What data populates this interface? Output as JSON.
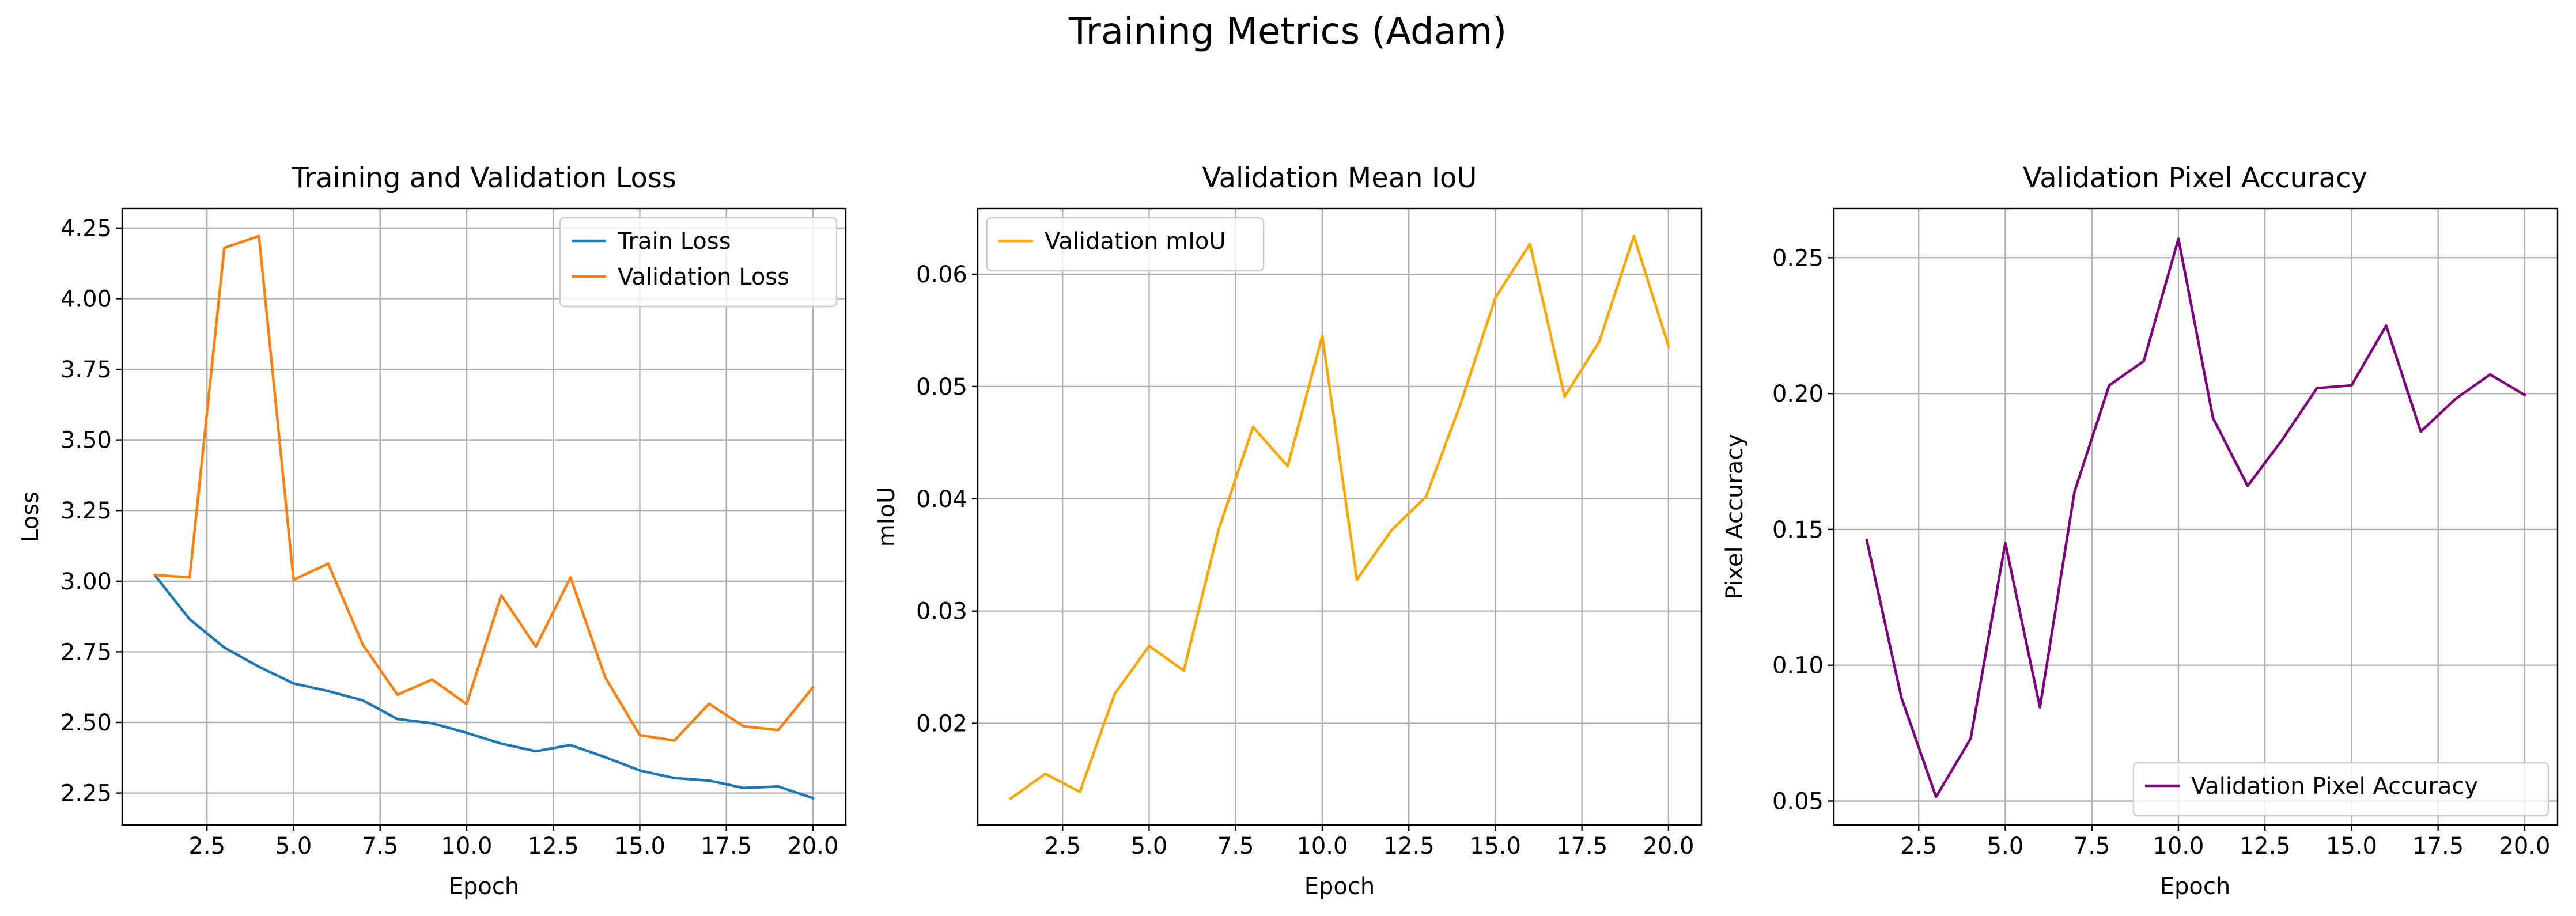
{
  "suptitle": "Training Metrics (Adam)",
  "chart_data": [
    {
      "type": "line",
      "title": "Training and Validation Loss",
      "xlabel": "Epoch",
      "ylabel": "Loss",
      "xlim": [
        0.05,
        20.95
      ],
      "ylim": [
        2.137,
        4.319
      ],
      "xticks": [
        2.5,
        5.0,
        7.5,
        10.0,
        12.5,
        15.0,
        17.5,
        20.0
      ],
      "xtick_labels": [
        "2.5",
        "5.0",
        "7.5",
        "10.0",
        "12.5",
        "15.0",
        "17.5",
        "20.0"
      ],
      "yticks": [
        2.25,
        2.5,
        2.75,
        3.0,
        3.25,
        3.5,
        3.75,
        4.0,
        4.25
      ],
      "ytick_labels": [
        "2.25",
        "2.50",
        "2.75",
        "3.00",
        "3.25",
        "3.50",
        "3.75",
        "4.00",
        "4.25"
      ],
      "grid": true,
      "legend_position": "upper right",
      "x": [
        1,
        2,
        3,
        4,
        5,
        6,
        7,
        8,
        9,
        10,
        11,
        12,
        13,
        14,
        15,
        16,
        17,
        18,
        19,
        20
      ],
      "series": [
        {
          "name": "Train Loss",
          "color": "#1f77b4",
          "values": [
            3.02,
            2.865,
            2.765,
            2.697,
            2.638,
            2.611,
            2.578,
            2.512,
            2.497,
            2.463,
            2.425,
            2.398,
            2.42,
            2.377,
            2.33,
            2.303,
            2.294,
            2.268,
            2.273,
            2.232
          ]
        },
        {
          "name": "Validation Loss",
          "color": "#ff7f0e",
          "values": [
            3.022,
            3.013,
            4.18,
            4.222,
            3.005,
            3.062,
            2.775,
            2.598,
            2.652,
            2.565,
            2.95,
            2.768,
            3.013,
            2.66,
            2.455,
            2.436,
            2.566,
            2.486,
            2.473,
            2.624
          ]
        }
      ]
    },
    {
      "type": "line",
      "title": "Validation Mean IoU",
      "xlabel": "Epoch",
      "ylabel": "mIoU",
      "xlim": [
        0.05,
        20.95
      ],
      "ylim": [
        0.01095,
        0.06585
      ],
      "xticks": [
        2.5,
        5.0,
        7.5,
        10.0,
        12.5,
        15.0,
        17.5,
        20.0
      ],
      "xtick_labels": [
        "2.5",
        "5.0",
        "7.5",
        "10.0",
        "12.5",
        "15.0",
        "17.5",
        "20.0"
      ],
      "yticks": [
        0.02,
        0.03,
        0.04,
        0.05,
        0.06
      ],
      "ytick_labels": [
        "0.02",
        "0.03",
        "0.04",
        "0.05",
        "0.06"
      ],
      "grid": true,
      "legend_position": "upper left",
      "x": [
        1,
        2,
        3,
        4,
        5,
        6,
        7,
        8,
        9,
        10,
        11,
        12,
        13,
        14,
        15,
        16,
        17,
        18,
        19,
        20
      ],
      "series": [
        {
          "name": "Validation mIoU",
          "color": "#ffa500",
          "values": [
            0.0133,
            0.0155,
            0.0139,
            0.0226,
            0.0269,
            0.0247,
            0.0372,
            0.0464,
            0.0429,
            0.0545,
            0.0328,
            0.0372,
            0.0402,
            0.0485,
            0.0579,
            0.0627,
            0.0491,
            0.054,
            0.0634,
            0.0536
          ]
        }
      ]
    },
    {
      "type": "line",
      "title": "Validation Pixel Accuracy",
      "xlabel": "Epoch",
      "ylabel": "Pixel Accuracy",
      "xlim": [
        0.05,
        20.95
      ],
      "ylim": [
        0.0412,
        0.2681
      ],
      "xticks": [
        2.5,
        5.0,
        7.5,
        10.0,
        12.5,
        15.0,
        17.5,
        20.0
      ],
      "xtick_labels": [
        "2.5",
        "5.0",
        "7.5",
        "10.0",
        "12.5",
        "15.0",
        "17.5",
        "20.0"
      ],
      "yticks": [
        0.05,
        0.1,
        0.15,
        0.2,
        0.25
      ],
      "ytick_labels": [
        "0.05",
        "0.10",
        "0.15",
        "0.20",
        "0.25"
      ],
      "grid": true,
      "legend_position": "lower right",
      "x": [
        1,
        2,
        3,
        4,
        5,
        6,
        7,
        8,
        9,
        10,
        11,
        12,
        13,
        14,
        15,
        16,
        17,
        18,
        19,
        20
      ],
      "series": [
        {
          "name": "Validation Pixel Accuracy",
          "color": "#800080",
          "values": [
            0.146,
            0.088,
            0.0515,
            0.073,
            0.145,
            0.0845,
            0.164,
            0.203,
            0.212,
            0.257,
            0.191,
            0.166,
            0.183,
            0.202,
            0.203,
            0.225,
            0.186,
            0.198,
            0.207,
            0.1995
          ]
        }
      ]
    }
  ]
}
